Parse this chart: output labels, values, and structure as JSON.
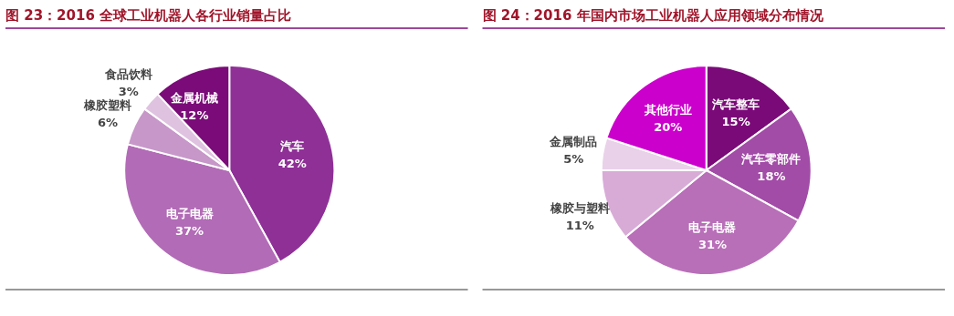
{
  "chart_data": [
    {
      "type": "pie",
      "title": "图 23：2016 全球工业机器人各行业销量占比",
      "categories": [
        "汽车",
        "电子电器",
        "橡胶塑料",
        "食品饮料",
        "金属机械"
      ],
      "values": [
        42,
        37,
        6,
        3,
        12
      ],
      "value_labels": [
        "42%",
        "37%",
        "6%",
        "3%",
        "12%"
      ],
      "colors": [
        "#8f3097",
        "#b26bb6",
        "#c797c9",
        "#dfc2e0",
        "#7a0b78"
      ]
    },
    {
      "type": "pie",
      "title": "图 24：2016 年国内市场工业机器人应用领域分布情况",
      "categories": [
        "汽车整车",
        "汽车零部件",
        "电子电器",
        "橡胶与塑料",
        "金属制品",
        "其他行业"
      ],
      "values": [
        15,
        18,
        31,
        11,
        5,
        20
      ],
      "value_labels": [
        "15%",
        "18%",
        "31%",
        "11%",
        "5%",
        "20%"
      ],
      "colors": [
        "#7b0a79",
        "#a24ba7",
        "#b86fb8",
        "#d8abd7",
        "#e9d1e9",
        "#cc00cc"
      ]
    }
  ]
}
